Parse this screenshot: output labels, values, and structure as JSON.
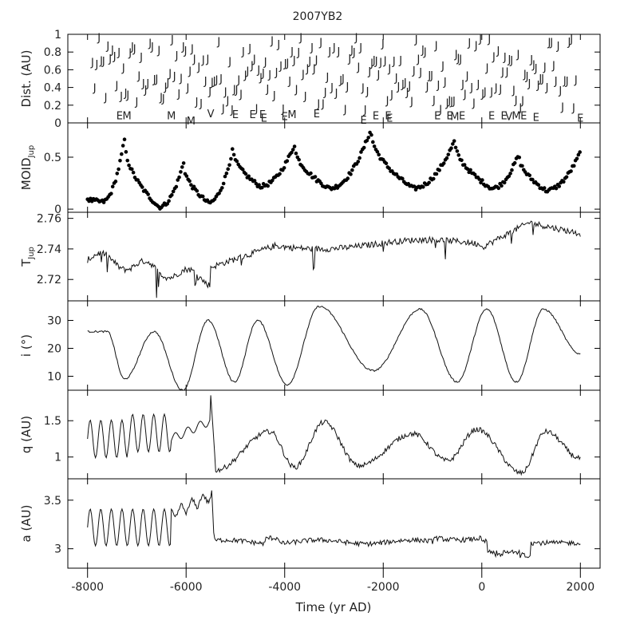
{
  "chart_data": {
    "title": "2007YB2",
    "xlabel": "Time (yr AD)",
    "xlim": [
      -8400,
      2400
    ],
    "x_ticks": [
      -8000,
      -6000,
      -4000,
      -2000,
      0,
      2000
    ],
    "panels": [
      {
        "id": "dist",
        "type": "scatter-text",
        "ylabel": "Dist. (AU)",
        "ylim": [
          0,
          1
        ],
        "y_ticks": [
          "0",
          "0.2",
          "0.4",
          "0.6",
          "0.8",
          "1"
        ],
        "y_tick_values": [
          0,
          0.2,
          0.4,
          0.6,
          0.8,
          1
        ],
        "jupiter_marker": "J",
        "encounters": [
          {
            "x": -7350,
            "y": 0.06,
            "label": "E"
          },
          {
            "x": -7200,
            "y": 0.06,
            "label": "M"
          },
          {
            "x": -6300,
            "y": 0.06,
            "label": "M"
          },
          {
            "x": -5900,
            "y": 0.0,
            "label": "M"
          },
          {
            "x": -5500,
            "y": 0.08,
            "label": "V"
          },
          {
            "x": -5000,
            "y": 0.07,
            "label": "E"
          },
          {
            "x": -4650,
            "y": 0.07,
            "label": "E"
          },
          {
            "x": -4450,
            "y": 0.07,
            "label": "E"
          },
          {
            "x": -4420,
            "y": 0.03,
            "label": "E"
          },
          {
            "x": -4000,
            "y": 0.05,
            "label": "E"
          },
          {
            "x": -3850,
            "y": 0.07,
            "label": "M"
          },
          {
            "x": -3350,
            "y": 0.08,
            "label": "E"
          },
          {
            "x": -2400,
            "y": 0.01,
            "label": "E"
          },
          {
            "x": -2150,
            "y": 0.06,
            "label": "E"
          },
          {
            "x": -1900,
            "y": 0.06,
            "label": "E"
          },
          {
            "x": -1870,
            "y": 0.03,
            "label": "E"
          },
          {
            "x": -900,
            "y": 0.06,
            "label": "E"
          },
          {
            "x": -650,
            "y": 0.06,
            "label": "E"
          },
          {
            "x": -550,
            "y": 0.05,
            "label": "M"
          },
          {
            "x": -400,
            "y": 0.06,
            "label": "E"
          },
          {
            "x": 200,
            "y": 0.06,
            "label": "E"
          },
          {
            "x": 450,
            "y": 0.06,
            "label": "E"
          },
          {
            "x": 550,
            "y": 0.05,
            "label": "V"
          },
          {
            "x": 700,
            "y": 0.06,
            "label": "M"
          },
          {
            "x": 850,
            "y": 0.06,
            "label": "E"
          },
          {
            "x": 1100,
            "y": 0.04,
            "label": "E"
          },
          {
            "x": 2000,
            "y": 0.03,
            "label": "E"
          }
        ]
      },
      {
        "id": "moid",
        "type": "scatter",
        "ylabel": "MOID",
        "ylabel_sub": "Jup",
        "ylim": [
          -0.03,
          0.83
        ],
        "y_ticks": [
          "0",
          "0.5"
        ],
        "y_tick_values": [
          0,
          0.5
        ]
      },
      {
        "id": "tjup",
        "type": "line",
        "ylabel": "T",
        "ylabel_sub": "Jup",
        "ylim": [
          2.706,
          2.764
        ],
        "y_ticks": [
          "2.72",
          "2.74",
          "2.76"
        ],
        "y_tick_values": [
          2.72,
          2.74,
          2.76
        ]
      },
      {
        "id": "incl",
        "type": "line",
        "ylabel": "i (°)",
        "ylim": [
          5,
          37
        ],
        "y_ticks": [
          "10",
          "20",
          "30"
        ],
        "y_tick_values": [
          10,
          20,
          30
        ]
      },
      {
        "id": "q",
        "type": "line",
        "ylabel": "q (AU)",
        "ylim": [
          0.7,
          1.92
        ],
        "y_ticks": [
          "1",
          "1.5"
        ],
        "y_tick_values": [
          1,
          1.5
        ]
      },
      {
        "id": "a",
        "type": "line",
        "ylabel": "a (AU)",
        "ylim": [
          2.8,
          3.72
        ],
        "y_ticks": [
          "3",
          "3.5"
        ],
        "y_tick_values": [
          3,
          3.5
        ]
      }
    ]
  }
}
